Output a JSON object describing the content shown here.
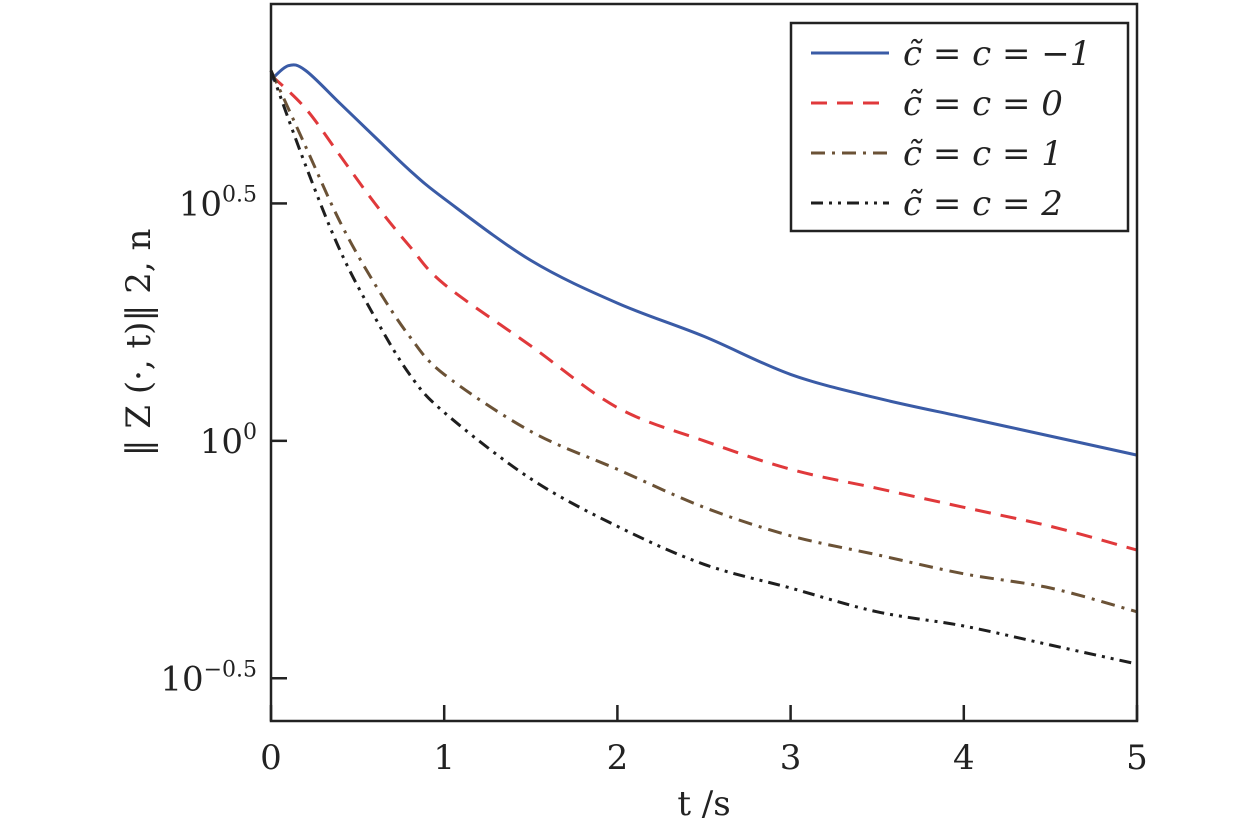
{
  "chart_data": {
    "type": "line",
    "xlabel": "t /s",
    "ylabel": "‖ Z (·, t)‖ 2, n",
    "xlim": [
      0,
      5
    ],
    "ylim_log10": [
      -0.59,
      0.92
    ],
    "yscale": "log",
    "grid": false,
    "legend_position": "top-right",
    "x_ticks": [
      {
        "value": 0,
        "label": "0"
      },
      {
        "value": 1,
        "label": "1"
      },
      {
        "value": 2,
        "label": "2"
      },
      {
        "value": 3,
        "label": "3"
      },
      {
        "value": 4,
        "label": "4"
      },
      {
        "value": 5,
        "label": "5"
      }
    ],
    "y_ticks": [
      {
        "log10": -0.5,
        "base": "10",
        "exp": "−0.5"
      },
      {
        "log10": 0,
        "base": "10",
        "exp": "0"
      },
      {
        "log10": 0.5,
        "base": "10",
        "exp": "0.5"
      }
    ],
    "series": [
      {
        "name": "c̃ = c = −1",
        "color": "#3a5ba6",
        "dash": "solid",
        "x": [
          0,
          0.1,
          0.2,
          0.4,
          0.6,
          0.8,
          1.0,
          1.5,
          2.0,
          2.5,
          3.0,
          3.5,
          4.0,
          4.5,
          5.0
        ],
        "y_log10": [
          0.76,
          0.79,
          0.78,
          0.71,
          0.64,
          0.57,
          0.51,
          0.38,
          0.29,
          0.22,
          0.14,
          0.09,
          0.05,
          0.01,
          -0.03
        ]
      },
      {
        "name": "c̃ = c = 0",
        "color": "#e0393b",
        "dash": "dashed",
        "x": [
          0,
          0.2,
          0.4,
          0.6,
          0.8,
          1.0,
          1.5,
          2.0,
          2.5,
          3.0,
          3.5,
          4.0,
          4.5,
          5.0
        ],
        "y_log10": [
          0.77,
          0.7,
          0.6,
          0.5,
          0.41,
          0.33,
          0.2,
          0.07,
          0.0,
          -0.06,
          -0.1,
          -0.14,
          -0.18,
          -0.23
        ]
      },
      {
        "name": "c̃ = c = 1",
        "color": "#6b5236",
        "dash": "dashdot",
        "x": [
          0,
          0.2,
          0.4,
          0.6,
          0.8,
          1.0,
          1.5,
          2.0,
          2.5,
          3.0,
          3.5,
          4.0,
          4.5,
          5.0
        ],
        "y_log10": [
          0.78,
          0.62,
          0.46,
          0.33,
          0.22,
          0.14,
          0.02,
          -0.06,
          -0.14,
          -0.2,
          -0.24,
          -0.28,
          -0.31,
          -0.36
        ]
      },
      {
        "name": "c̃ = c = 2",
        "color": "#1e1e1e",
        "dash": "dashdotdot",
        "x": [
          0,
          0.2,
          0.4,
          0.6,
          0.8,
          1.0,
          1.5,
          2.0,
          2.5,
          3.0,
          3.5,
          4.0,
          4.5,
          5.0
        ],
        "y_log10": [
          0.78,
          0.58,
          0.4,
          0.26,
          0.14,
          0.06,
          -0.08,
          -0.18,
          -0.26,
          -0.31,
          -0.36,
          -0.39,
          -0.43,
          -0.47
        ]
      }
    ]
  }
}
